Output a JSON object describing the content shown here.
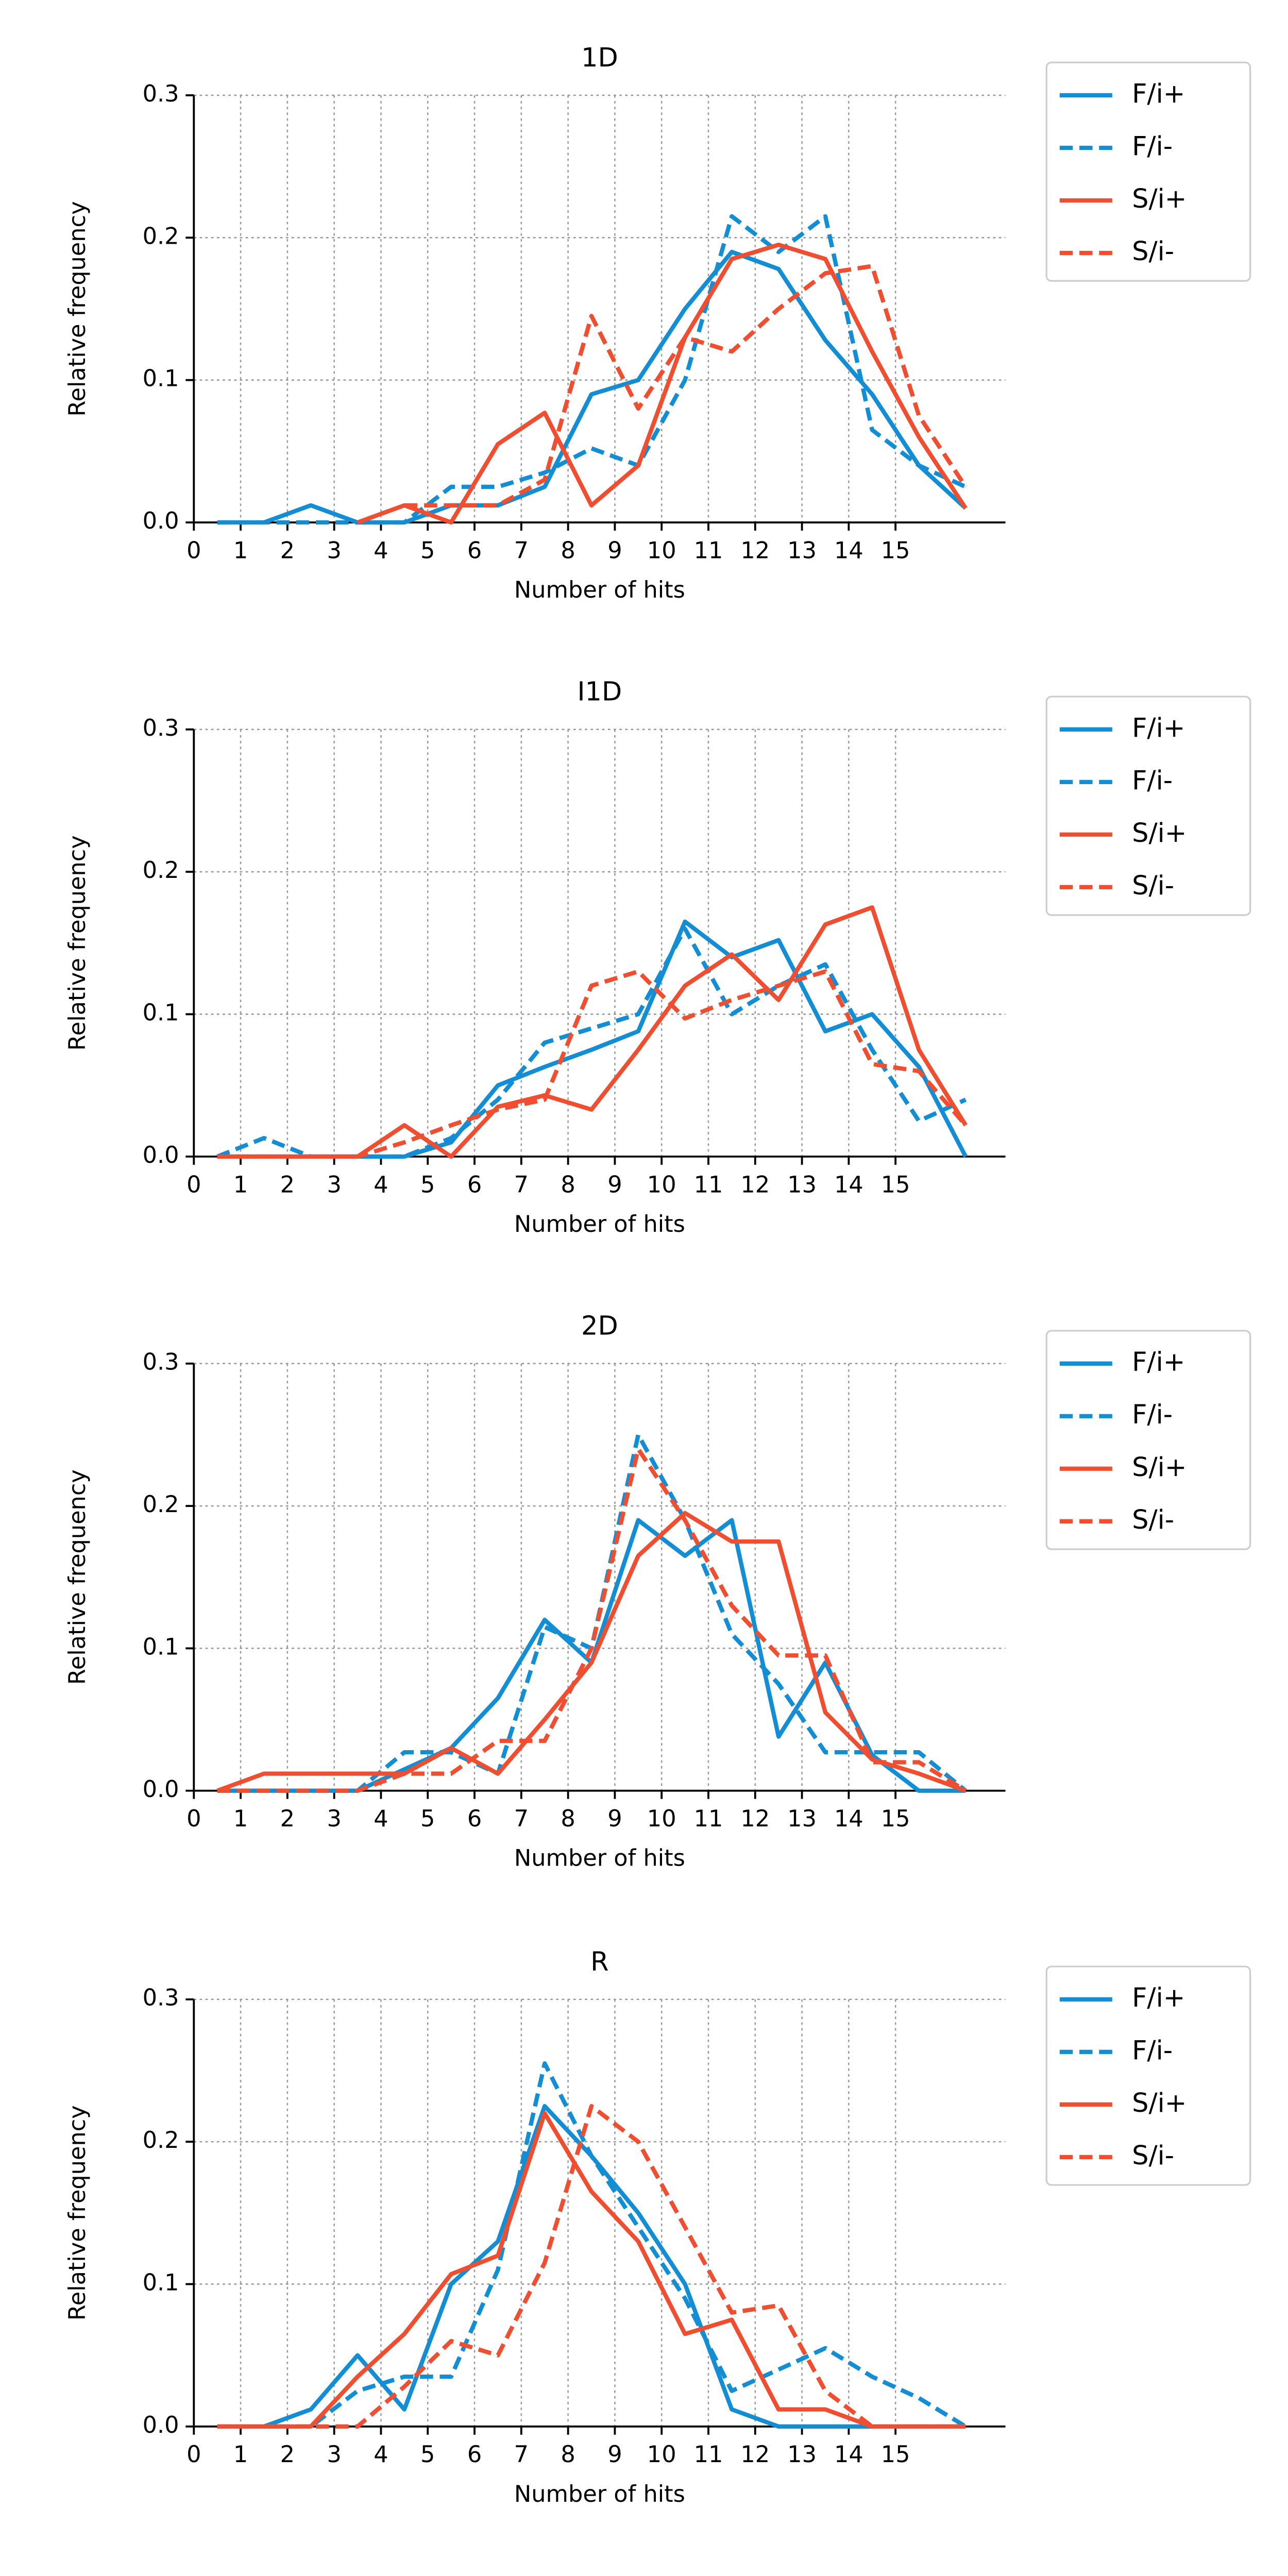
{
  "chart_data": [
    {
      "type": "line",
      "title": "1D",
      "xlabel": "Number of hits",
      "ylabel": "Relative frequency",
      "x": [
        0.5,
        1.5,
        2.5,
        3.5,
        4.5,
        5.5,
        6.5,
        7.5,
        8.5,
        9.5,
        10.5,
        11.5,
        12.5,
        13.5,
        14.5,
        15.5,
        16.5
      ],
      "series": [
        {
          "name": "F/i+",
          "color": "#138dd4",
          "linestyle": "solid",
          "values": [
            0,
            0,
            0.012,
            0,
            0,
            0.012,
            0.012,
            0.025,
            0.09,
            0.1,
            0.15,
            0.19,
            0.178,
            0.128,
            0.09,
            0.04,
            0.01
          ]
        },
        {
          "name": "F/i-",
          "color": "#138dd4",
          "linestyle": "dashed",
          "values": [
            0,
            0,
            0,
            0,
            0,
            0.025,
            0.025,
            0.035,
            0.052,
            0.04,
            0.1,
            0.215,
            0.19,
            0.215,
            0.065,
            0.04,
            0.025
          ]
        },
        {
          "name": "S/i+",
          "color": "#f04e30",
          "linestyle": "solid",
          "values": [
            null,
            null,
            null,
            0,
            0.012,
            0,
            0.055,
            0.077,
            0.012,
            0.04,
            0.13,
            0.185,
            0.195,
            0.185,
            0.12,
            0.06,
            0.01
          ]
        },
        {
          "name": "S/i-",
          "color": "#f04e30",
          "linestyle": "dashed",
          "values": [
            null,
            null,
            null,
            null,
            0.012,
            0.012,
            0.012,
            0.03,
            0.145,
            0.08,
            0.13,
            0.12,
            0.15,
            0.175,
            0.18,
            0.075,
            0.025
          ]
        }
      ],
      "xlim": [
        0,
        17.35
      ],
      "ylim": [
        0,
        0.3
      ],
      "xticks": [
        0,
        1,
        2,
        3,
        4,
        5,
        6,
        7,
        8,
        9,
        10,
        11,
        12,
        13,
        14,
        15
      ],
      "yticks": [
        {
          "value": 0,
          "label": "0.0"
        },
        0.1,
        0.2,
        0.3
      ],
      "grid": true,
      "legend": "outside-right"
    },
    {
      "type": "line",
      "title": "I1D",
      "xlabel": "Number of hits",
      "ylabel": "Relative frequency",
      "x": [
        0.5,
        1.5,
        2.5,
        3.5,
        4.5,
        5.5,
        6.5,
        7.5,
        8.5,
        9.5,
        10.5,
        11.5,
        12.5,
        13.5,
        14.5,
        15.5,
        16.5
      ],
      "series": [
        {
          "name": "F/i+",
          "color": "#138dd4",
          "linestyle": "solid",
          "values": [
            0,
            0,
            0,
            0,
            0,
            0.01,
            0.05,
            0.063,
            0.075,
            0.088,
            0.165,
            0.14,
            0.152,
            0.088,
            0.1,
            0.063,
            0
          ]
        },
        {
          "name": "F/i-",
          "color": "#138dd4",
          "linestyle": "dashed",
          "values": [
            0,
            0.013,
            0,
            0,
            0,
            0.013,
            0.04,
            0.08,
            0.09,
            0.1,
            0.16,
            0.1,
            0.12,
            0.135,
            0.075,
            0.025,
            0.04
          ]
        },
        {
          "name": "S/i+",
          "color": "#f04e30",
          "linestyle": "solid",
          "values": [
            0,
            0,
            0,
            0,
            0.022,
            0,
            0.035,
            0.043,
            0.033,
            0.075,
            0.12,
            0.142,
            0.11,
            0.163,
            0.175,
            0.075,
            0.022
          ]
        },
        {
          "name": "S/i-",
          "color": "#f04e30",
          "linestyle": "dashed",
          "values": [
            0,
            0,
            0,
            0,
            0.01,
            0.022,
            0.033,
            0.04,
            0.12,
            0.13,
            0.097,
            0.11,
            0.12,
            0.13,
            0.065,
            0.06,
            0.022
          ]
        }
      ],
      "xlim": [
        0,
        17.35
      ],
      "ylim": [
        0,
        0.3
      ],
      "xticks": [
        0,
        1,
        2,
        3,
        4,
        5,
        6,
        7,
        8,
        9,
        10,
        11,
        12,
        13,
        14,
        15
      ],
      "yticks": [
        {
          "value": 0,
          "label": "0.0"
        },
        0.1,
        0.2,
        0.3
      ],
      "grid": true,
      "legend": "outside-right"
    },
    {
      "type": "line",
      "title": "2D",
      "xlabel": "Number of hits",
      "ylabel": "Relative frequency",
      "x": [
        0.5,
        1.5,
        2.5,
        3.5,
        4.5,
        5.5,
        6.5,
        7.5,
        8.5,
        9.5,
        10.5,
        11.5,
        12.5,
        13.5,
        14.5,
        15.5,
        16.5
      ],
      "series": [
        {
          "name": "F/i+",
          "color": "#138dd4",
          "linestyle": "solid",
          "values": [
            0,
            0,
            0,
            0,
            0.015,
            0.03,
            0.065,
            0.12,
            0.09,
            0.19,
            0.165,
            0.19,
            0.038,
            0.09,
            0.025,
            0,
            0
          ]
        },
        {
          "name": "F/i-",
          "color": "#138dd4",
          "linestyle": "dashed",
          "values": [
            0,
            0,
            0,
            0,
            0.027,
            0.027,
            0.012,
            0.115,
            0.1,
            0.25,
            0.19,
            0.11,
            0.075,
            0.027,
            0.027,
            0.027,
            0
          ]
        },
        {
          "name": "S/i+",
          "color": "#f04e30",
          "linestyle": "solid",
          "values": [
            0,
            0.012,
            0.012,
            0.012,
            0.012,
            0.03,
            0.012,
            0.05,
            0.09,
            0.165,
            0.195,
            0.175,
            0.175,
            0.055,
            0.022,
            0.012,
            0
          ]
        },
        {
          "name": "S/i-",
          "color": "#f04e30",
          "linestyle": "dashed",
          "values": [
            0,
            0,
            0,
            0,
            0.012,
            0.012,
            0.035,
            0.035,
            0.1,
            0.24,
            0.19,
            0.13,
            0.095,
            0.095,
            0.02,
            0.02,
            0
          ]
        }
      ],
      "xlim": [
        0,
        17.35
      ],
      "ylim": [
        0,
        0.3
      ],
      "xticks": [
        0,
        1,
        2,
        3,
        4,
        5,
        6,
        7,
        8,
        9,
        10,
        11,
        12,
        13,
        14,
        15
      ],
      "yticks": [
        {
          "value": 0,
          "label": "0.0"
        },
        0.1,
        0.2,
        0.3
      ],
      "grid": true,
      "legend": "outside-right"
    },
    {
      "type": "line",
      "title": "R",
      "xlabel": "Number of hits",
      "ylabel": "Relative frequency",
      "x": [
        0.5,
        1.5,
        2.5,
        3.5,
        4.5,
        5.5,
        6.5,
        7.5,
        8.5,
        9.5,
        10.5,
        11.5,
        12.5,
        13.5,
        14.5,
        15.5,
        16.5
      ],
      "series": [
        {
          "name": "F/i+",
          "color": "#138dd4",
          "linestyle": "solid",
          "values": [
            0,
            0,
            0.012,
            0.05,
            0.012,
            0.1,
            0.13,
            0.225,
            0.19,
            0.15,
            0.1,
            0.012,
            0,
            0,
            0,
            0,
            0
          ]
        },
        {
          "name": "F/i-",
          "color": "#138dd4",
          "linestyle": "dashed",
          "values": [
            0,
            0,
            0,
            0.025,
            0.035,
            0.035,
            0.11,
            0.255,
            0.19,
            0.14,
            0.09,
            0.025,
            0.04,
            0.055,
            0.035,
            0.02,
            0
          ]
        },
        {
          "name": "S/i+",
          "color": "#f04e30",
          "linestyle": "solid",
          "values": [
            0,
            0,
            0,
            0.035,
            0.065,
            0.107,
            0.12,
            0.22,
            0.165,
            0.13,
            0.065,
            0.075,
            0.012,
            0.012,
            0,
            0,
            0
          ]
        },
        {
          "name": "S/i-",
          "color": "#f04e30",
          "linestyle": "dashed",
          "values": [
            0,
            0,
            0,
            0,
            0.028,
            0.06,
            0.05,
            0.115,
            0.225,
            0.2,
            0.14,
            0.08,
            0.085,
            0.025,
            0,
            0,
            0
          ]
        }
      ],
      "xlim": [
        0,
        17.35
      ],
      "ylim": [
        0,
        0.3
      ],
      "xticks": [
        0,
        1,
        2,
        3,
        4,
        5,
        6,
        7,
        8,
        9,
        10,
        11,
        12,
        13,
        14,
        15
      ],
      "yticks": [
        {
          "value": 0,
          "label": "0.0"
        },
        0.1,
        0.2,
        0.3
      ],
      "grid": true,
      "legend": "outside-right"
    }
  ]
}
